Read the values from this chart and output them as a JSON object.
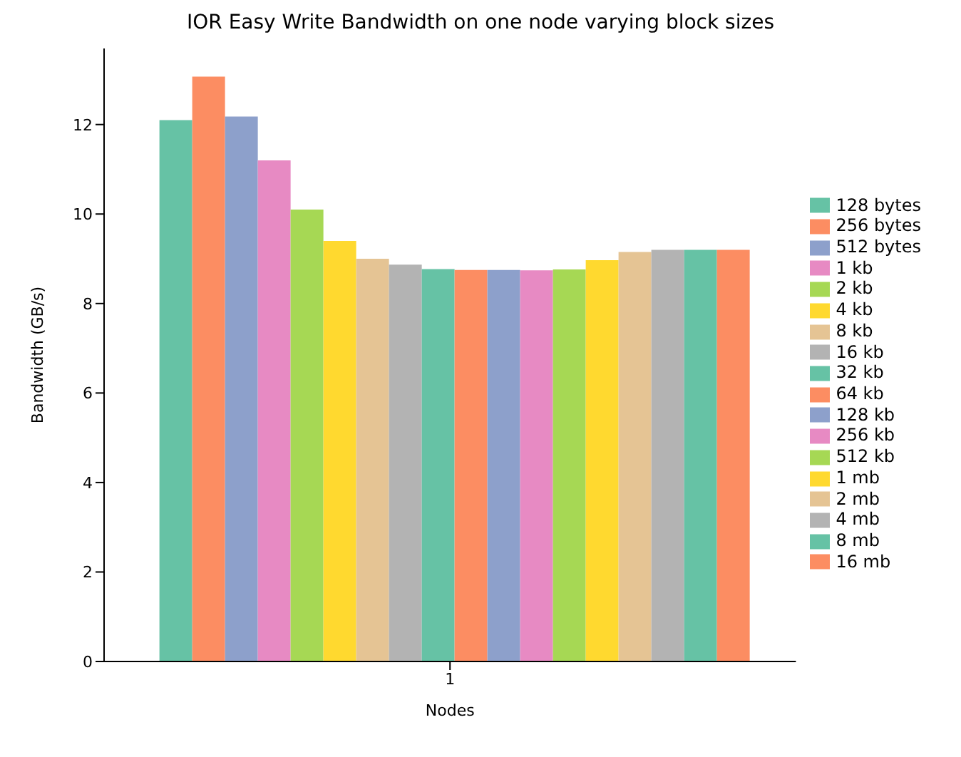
{
  "chart_data": {
    "type": "bar",
    "title": "IOR Easy Write Bandwidth on one node varying block sizes",
    "xlabel": "Nodes",
    "ylabel": "Bandwidth (GB/s)",
    "categories": [
      "1"
    ],
    "series": [
      {
        "name": "128 bytes",
        "color": "#66c2a5",
        "values": [
          12.1
        ]
      },
      {
        "name": "256 bytes",
        "color": "#fc8d62",
        "values": [
          13.07
        ]
      },
      {
        "name": "512 bytes",
        "color": "#8da0cb",
        "values": [
          12.18
        ]
      },
      {
        "name": "1 kb",
        "color": "#e78ac3",
        "values": [
          11.2
        ]
      },
      {
        "name": "2 kb",
        "color": "#a6d854",
        "values": [
          10.1
        ]
      },
      {
        "name": "4 kb",
        "color": "#ffd92f",
        "values": [
          9.4
        ]
      },
      {
        "name": "8 kb",
        "color": "#e5c494",
        "values": [
          9.0
        ]
      },
      {
        "name": "16 kb",
        "color": "#b3b3b3",
        "values": [
          8.87
        ]
      },
      {
        "name": "32 kb",
        "color": "#66c2a5",
        "values": [
          8.77
        ]
      },
      {
        "name": "64 kb",
        "color": "#fc8d62",
        "values": [
          8.75
        ]
      },
      {
        "name": "128 kb",
        "color": "#8da0cb",
        "values": [
          8.75
        ]
      },
      {
        "name": "256 kb",
        "color": "#e78ac3",
        "values": [
          8.74
        ]
      },
      {
        "name": "512 kb",
        "color": "#a6d854",
        "values": [
          8.76
        ]
      },
      {
        "name": "1 mb",
        "color": "#ffd92f",
        "values": [
          8.97
        ]
      },
      {
        "name": "2 mb",
        "color": "#e5c494",
        "values": [
          9.15
        ]
      },
      {
        "name": "4 mb",
        "color": "#b3b3b3",
        "values": [
          9.2
        ]
      },
      {
        "name": "8 mb",
        "color": "#66c2a5",
        "values": [
          9.2
        ]
      },
      {
        "name": "16 mb",
        "color": "#fc8d62",
        "values": [
          9.2
        ]
      }
    ],
    "ylim": [
      0,
      13.7
    ],
    "yticks": [
      0,
      2,
      4,
      6,
      8,
      10,
      12
    ],
    "grid": false,
    "legend": "right"
  }
}
